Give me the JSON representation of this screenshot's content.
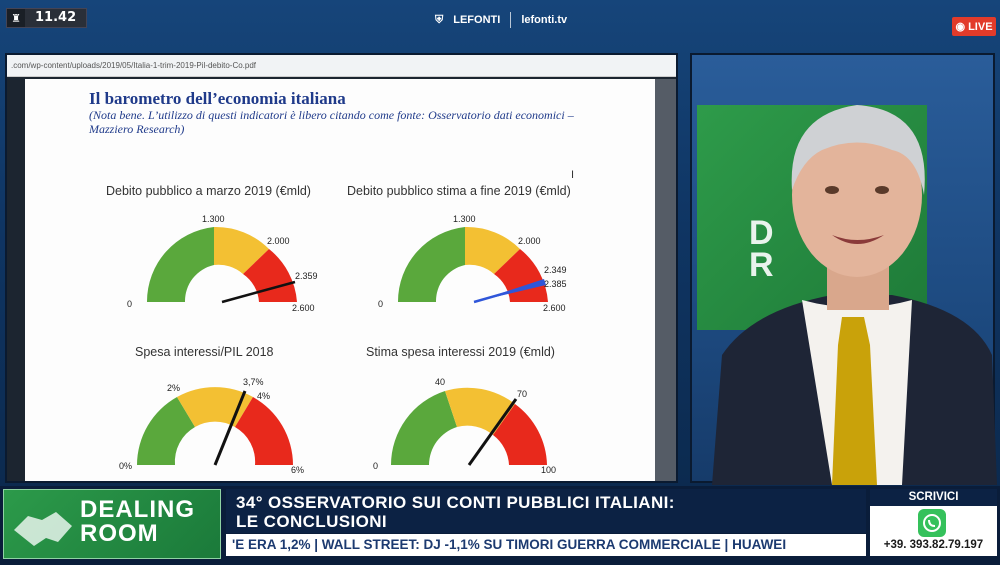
{
  "top": {
    "time": "11.42",
    "brand_name": "LEFONTI",
    "brand_url": "lefonti.tv",
    "live_label": "LIVE"
  },
  "browser": {
    "url": ".com/wp-content/uploads/2019/05/Italia-1-trim-2019-Pil-debito-Co.pdf"
  },
  "slide": {
    "title": "Il barometro dell’economia italiana",
    "note": "(Nota bene. L’utilizzo di questi indicatori è libero citando come fonte: Osservatorio dati economici – Mazziero Research)",
    "gauges": [
      {
        "title": "Debito pubblico a marzo 2019 (€mld)",
        "min": "0",
        "t1": "1.300",
        "t2": "2.000",
        "value": "2.359",
        "max": "2.600"
      },
      {
        "title": "Debito pubblico stima a fine 2019 (€mld)",
        "min": "0",
        "t1": "1.300",
        "t2": "2.000",
        "value": "2.349",
        "value2": "2.385",
        "max": "2.600"
      },
      {
        "title": "Spesa interessi/PIL 2018",
        "min": "0%",
        "t1": "2%",
        "t2": "4%",
        "value": "3,7%",
        "max": "6%"
      },
      {
        "title": "Stima spesa interessi 2019 (€mld)",
        "min": "0",
        "t1": "40",
        "t2": "70",
        "max": "100"
      }
    ]
  },
  "video": {
    "backdrop_text": "D\nR"
  },
  "lower_third": {
    "show_line1": "DEALING",
    "show_line2": "ROOM",
    "headline_line1": "34° OSSERVATORIO SUI CONTI PUBBLICI ITALIANI:",
    "headline_line2": "LE CONCLUSIONI",
    "ticker": "'E ERA 1,2% | WALL STREET: DJ -1,1% SU TIMORI GUERRA COMMERCIALE | HUAWEI",
    "scrivici_label": "SCRIVICI",
    "whatsapp_number": "+39. 393.82.79.197"
  },
  "colors": {
    "green": "#5aa83c",
    "yellow": "#f3c033",
    "red": "#e8291c",
    "needle_dark": "#111111",
    "needle_blue": "#2f56d9",
    "live_red": "#e23b2a"
  }
}
